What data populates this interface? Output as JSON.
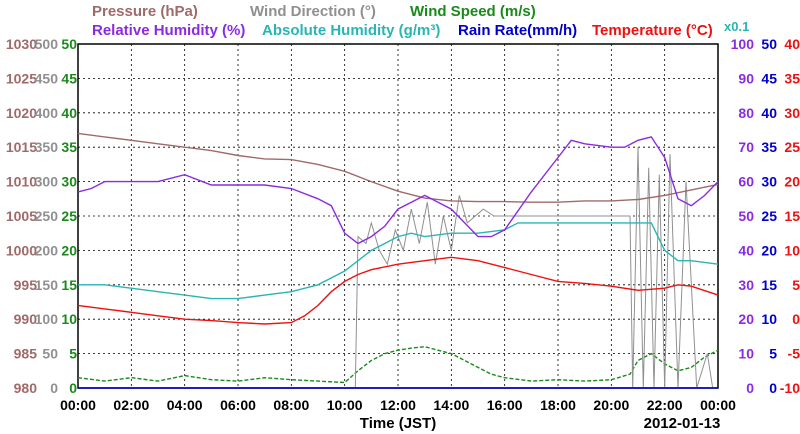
{
  "legend": {
    "row1": [
      {
        "id": "pressure",
        "label": "Pressure (hPa)",
        "color": "#a06a6a"
      },
      {
        "id": "wind_dir",
        "label": "Wind Direction (°)",
        "color": "#909090"
      },
      {
        "id": "wind_speed",
        "label": "Wind Speed (m/s)",
        "color": "#1a8a1a"
      }
    ],
    "row2": [
      {
        "id": "rel_hum",
        "label": "Relative Humidity (%)",
        "color": "#8a2be2"
      },
      {
        "id": "abs_hum",
        "label": "Absolute Humidity (g/m³)",
        "color": "#2ab5b5"
      },
      {
        "id": "rain",
        "label": "Rain Rate(mm/h)",
        "color": "#0000cc"
      },
      {
        "id": "temp",
        "label": "Temperature (°C)",
        "color": "#ee1111"
      }
    ],
    "abs_hum_scale": "x0.1"
  },
  "axes": {
    "pressure": {
      "ticks": [
        "980",
        "985",
        "990",
        "995",
        "1000",
        "1005",
        "1010",
        "1015",
        "1020",
        "1025",
        "1030"
      ],
      "color": "#a06a6a"
    },
    "wind_dir": {
      "ticks": [
        "0",
        "50",
        "100",
        "150",
        "200",
        "250",
        "300",
        "350",
        "400",
        "450",
        "500"
      ],
      "color": "#909090"
    },
    "wind_speed": {
      "ticks": [
        "0",
        "5",
        "10",
        "15",
        "20",
        "25",
        "30",
        "35",
        "40",
        "45",
        "50"
      ],
      "color": "#1a8a1a"
    },
    "rel_hum": {
      "ticks": [
        "0",
        "10",
        "20",
        "30",
        "40",
        "50",
        "60",
        "70",
        "80",
        "90",
        "100"
      ],
      "color": "#8a2be2"
    },
    "rain": {
      "ticks": [
        "0",
        "5",
        "10",
        "15",
        "20",
        "25",
        "30",
        "35",
        "40",
        "45",
        "50"
      ],
      "color": "#0000cc"
    },
    "temp": {
      "ticks": [
        "-10",
        "-5",
        "0",
        "5",
        "10",
        "15",
        "20",
        "25",
        "30",
        "35",
        "40"
      ],
      "color": "#ee1111"
    },
    "x_ticks": [
      "00:00",
      "02:00",
      "04:00",
      "06:00",
      "08:00",
      "10:00",
      "12:00",
      "14:00",
      "16:00",
      "18:00",
      "20:00",
      "22:00",
      "00:00"
    ],
    "xlabel": "Time (JST)",
    "date": "2012-01-13"
  },
  "chart_data": {
    "type": "line",
    "x_unit": "hour",
    "xlim": [
      0,
      24
    ],
    "grid": true,
    "series": [
      {
        "name": "Pressure (hPa)",
        "color": "#a06a6a",
        "ylim": [
          980,
          1030
        ],
        "x": [
          0,
          1,
          2,
          3,
          4,
          5,
          6,
          7,
          8,
          9,
          10,
          11,
          12,
          13,
          14,
          15,
          16,
          17,
          18,
          19,
          20,
          21,
          22,
          23,
          24
        ],
        "y": [
          1017,
          1016.5,
          1016,
          1015.5,
          1015,
          1014.5,
          1013.8,
          1013.3,
          1013.2,
          1012.5,
          1011.5,
          1010,
          1008.6,
          1007.6,
          1007.2,
          1007.1,
          1007.1,
          1007,
          1007,
          1007.2,
          1007.2,
          1007.4,
          1008,
          1008.8,
          1009.6
        ]
      },
      {
        "name": "Wind Direction (°)",
        "color": "#909090",
        "ylim": [
          0,
          500
        ],
        "x": [
          10.4,
          10.5,
          10.8,
          11.0,
          11.3,
          11.6,
          11.9,
          12.2,
          12.5,
          12.8,
          13.1,
          13.4,
          13.7,
          14.0,
          14.3,
          14.6,
          14.9,
          15.2,
          15.6,
          16,
          17,
          18,
          19,
          20,
          20.7,
          20.8,
          21.0,
          21.2,
          21.4,
          21.6,
          21.8,
          22.0,
          22.2,
          22.5,
          22.8,
          23.2,
          23.6,
          23.8
        ],
        "y": [
          0,
          220,
          210,
          240,
          200,
          180,
          230,
          200,
          260,
          210,
          270,
          180,
          250,
          200,
          280,
          240,
          250,
          260,
          250,
          250,
          250,
          250,
          250,
          250,
          250,
          0,
          350,
          0,
          320,
          0,
          310,
          0,
          340,
          0,
          300,
          0,
          50,
          0
        ]
      },
      {
        "name": "Wind Speed (m/s)",
        "color": "#1a8a1a",
        "ylim": [
          0,
          50
        ],
        "x": [
          0,
          1,
          2,
          3,
          4,
          5,
          6,
          7,
          8,
          9,
          10,
          10.5,
          11,
          11.5,
          12,
          12.5,
          13,
          13.5,
          14,
          14.5,
          15,
          15.5,
          16,
          17,
          18,
          19,
          20,
          20.7,
          21,
          21.5,
          22,
          22.5,
          23,
          23.5,
          24
        ],
        "y": [
          1.5,
          1.0,
          1.5,
          1.0,
          1.8,
          1.2,
          1.0,
          1.5,
          1.2,
          1.0,
          0.8,
          2.5,
          4.0,
          5.0,
          5.5,
          5.8,
          6.0,
          5.5,
          5.0,
          4.0,
          3.0,
          2.0,
          1.5,
          1.0,
          1.2,
          1.0,
          1.2,
          2.0,
          4.0,
          5.0,
          3.5,
          2.5,
          3.0,
          4.5,
          5.5
        ]
      },
      {
        "name": "Relative Humidity (%)",
        "color": "#8a2be2",
        "ylim": [
          0,
          100
        ],
        "x": [
          0,
          0.5,
          1,
          2,
          3,
          4,
          5,
          6,
          7,
          8,
          9,
          9.5,
          10,
          10.5,
          11,
          11.5,
          12,
          13,
          14,
          15,
          15.5,
          16,
          17,
          18,
          18.5,
          19,
          20,
          20.5,
          21,
          21.5,
          22,
          22.5,
          23,
          23.5,
          24
        ],
        "y": [
          57,
          58,
          60,
          60,
          60,
          62,
          59,
          59,
          59,
          58,
          55,
          53,
          45,
          42,
          44,
          47,
          52,
          56,
          52,
          44,
          44,
          46,
          57,
          67,
          72,
          71,
          70,
          70,
          72,
          73,
          67,
          55,
          53,
          56,
          60
        ]
      },
      {
        "name": "Absolute Humidity (g/m³)",
        "color": "#2ab5b5",
        "ylim": [
          0,
          100
        ],
        "x": [
          0,
          1,
          2,
          3,
          4,
          5,
          6,
          7,
          8,
          9,
          10,
          10.5,
          11,
          11.5,
          12,
          12.5,
          13,
          14,
          15,
          16,
          16.5,
          17,
          18,
          19,
          20,
          21,
          21.5,
          22,
          22.5,
          23,
          24
        ],
        "y": [
          30,
          30,
          29,
          28,
          27,
          26,
          26,
          27,
          28,
          30,
          34,
          37,
          40,
          42,
          44,
          45,
          44,
          45,
          45,
          46,
          48,
          48,
          48,
          48,
          48,
          48,
          48,
          40,
          37,
          37,
          36
        ]
      },
      {
        "name": "Temperature (°C)",
        "color": "#ee1111",
        "ylim": [
          -10,
          40
        ],
        "x": [
          0,
          1,
          2,
          3,
          4,
          5,
          6,
          7,
          8,
          8.5,
          9,
          9.5,
          10,
          10.5,
          11,
          12,
          13,
          14,
          15,
          16,
          17,
          18,
          19,
          20,
          21,
          22,
          22.5,
          23,
          24
        ],
        "y": [
          2.0,
          1.5,
          1.0,
          0.5,
          0.0,
          -0.2,
          -0.5,
          -0.7,
          -0.5,
          0.5,
          2.0,
          4.0,
          5.5,
          6.5,
          7.2,
          8.0,
          8.5,
          9.0,
          8.5,
          7.5,
          6.5,
          5.5,
          5.2,
          4.8,
          4.2,
          4.5,
          5.0,
          4.8,
          3.5
        ]
      },
      {
        "name": "Rain Rate(mm/h)",
        "color": "#0000cc",
        "ylim": [
          0,
          50
        ],
        "x": [
          0,
          24
        ],
        "y": [
          0,
          0
        ]
      }
    ]
  }
}
